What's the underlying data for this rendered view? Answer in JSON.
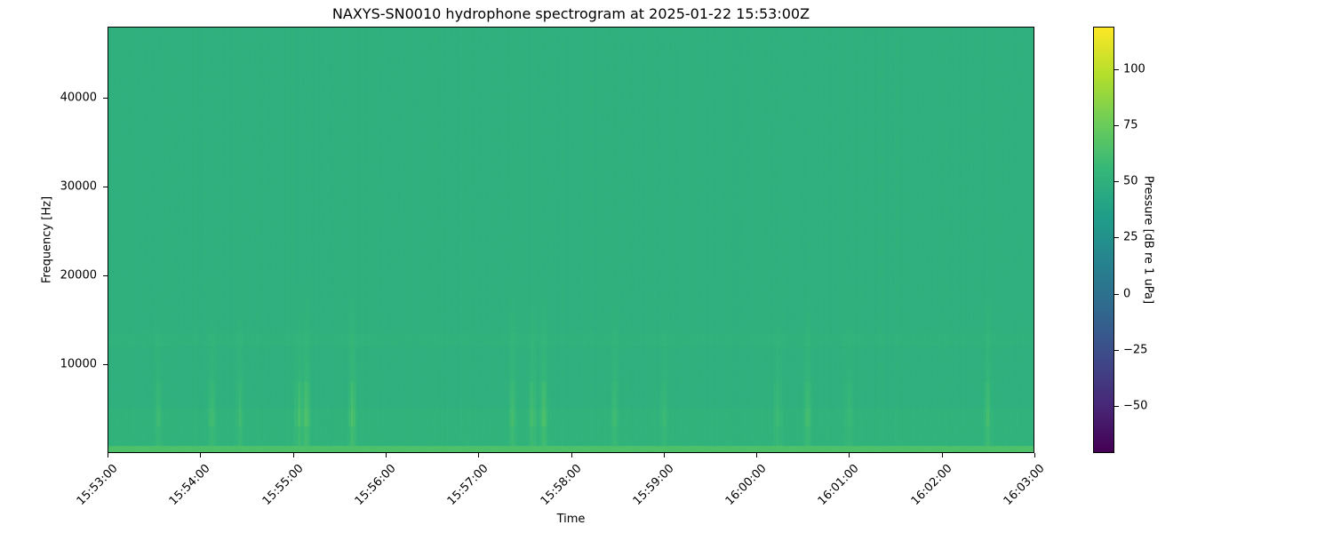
{
  "chart_data": {
    "type": "heatmap",
    "title": "NAXYS-SN0010 hydrophone spectrogram at 2025-01-22 15:53:00Z",
    "xlabel": "Time",
    "ylabel": "Frequency [Hz]",
    "colorbar_label": "Pressure [dB re 1 uPa]",
    "colormap": "viridis",
    "x_range": [
      "15:53:00",
      "16:03:00"
    ],
    "x_ticks": [
      "15:53:00",
      "15:54:00",
      "15:55:00",
      "15:56:00",
      "15:57:00",
      "15:58:00",
      "15:59:00",
      "16:00:00",
      "16:01:00",
      "16:02:00",
      "16:03:00"
    ],
    "ylim": [
      0,
      48000
    ],
    "y_ticks": [
      10000,
      20000,
      30000,
      40000
    ],
    "clim": [
      -71,
      119
    ],
    "c_ticks": [
      -50,
      -25,
      0,
      25,
      50,
      75,
      100
    ],
    "background_level_db": 50,
    "low_frequency_band_db": 65,
    "transient_bursts": [
      {
        "time": "15:53:32",
        "level_db": 58
      },
      {
        "time": "15:54:07",
        "level_db": 60
      },
      {
        "time": "15:54:25",
        "level_db": 58
      },
      {
        "time": "15:55:03",
        "level_db": 66
      },
      {
        "time": "15:55:08",
        "level_db": 68
      },
      {
        "time": "15:55:38",
        "level_db": 64
      },
      {
        "time": "15:57:22",
        "level_db": 60
      },
      {
        "time": "15:57:35",
        "level_db": 64
      },
      {
        "time": "15:57:42",
        "level_db": 63
      },
      {
        "time": "15:58:28",
        "level_db": 58
      },
      {
        "time": "15:59:00",
        "level_db": 57
      },
      {
        "time": "16:00:14",
        "level_db": 60
      },
      {
        "time": "16:00:33",
        "level_db": 62
      },
      {
        "time": "16:01:00",
        "level_db": 58
      },
      {
        "time": "16:02:30",
        "level_db": 63
      }
    ]
  }
}
